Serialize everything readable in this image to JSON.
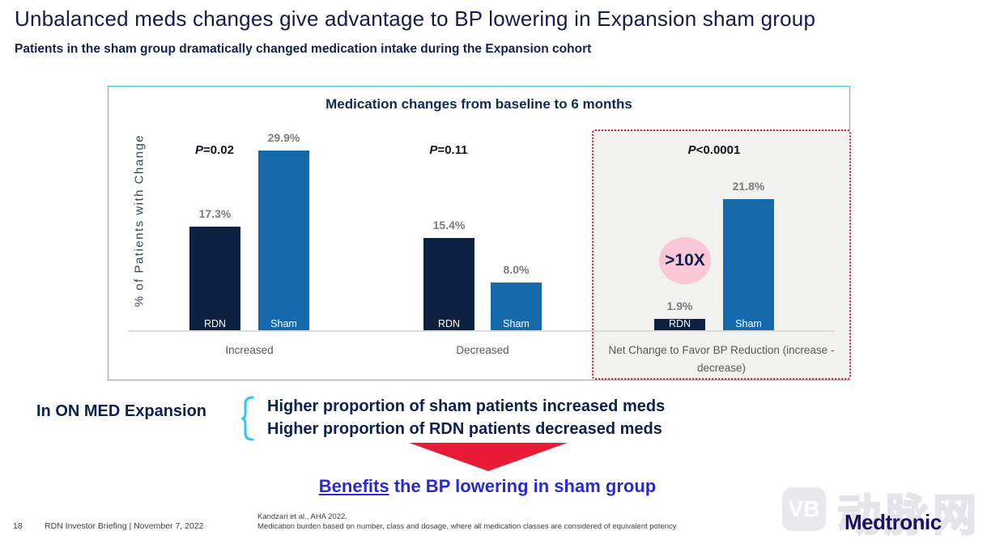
{
  "slide": {
    "title": "Unbalanced meds changes give advantage to BP lowering in Expansion sham group",
    "subtitle": "Patients in the sham group dramatically changed medication intake during the Expansion cohort"
  },
  "chart_data": {
    "type": "bar",
    "title": "Medication changes from baseline to 6 months",
    "ylabel": "% of Patients with Change",
    "ylim": [
      0,
      33
    ],
    "grid": false,
    "legend_position": "none",
    "series": [
      "RDN",
      "Sham"
    ],
    "groups": [
      {
        "category": "Increased",
        "p_value": "P=0.02",
        "values": {
          "RDN": 17.3,
          "Sham": 29.9
        },
        "labels": {
          "RDN": "17.3%",
          "Sham": "29.9%"
        },
        "highlighted": false
      },
      {
        "category": "Decreased",
        "p_value": "P=0.11",
        "values": {
          "RDN": 15.4,
          "Sham": 8.0
        },
        "labels": {
          "RDN": "15.4%",
          "Sham": "8.0%"
        },
        "highlighted": false
      },
      {
        "category": "Net Change to Favor BP Reduction (increase - decrease)",
        "p_value": "P<0.0001",
        "values": {
          "RDN": 1.9,
          "Sham": 21.8
        },
        "labels": {
          "RDN": "1.9%",
          "Sham": "21.8%"
        },
        "highlighted": true,
        "badge": ">10X"
      }
    ],
    "colors": {
      "RDN": "#0d2240",
      "Sham": "#166aab",
      "badge_bg": "#f9c7d5",
      "highlight_border": "#e9182f"
    }
  },
  "annotation": {
    "lead_in": "In ON MED Expansion",
    "points": [
      "Higher proportion of sham patients increased meds",
      "Higher proportion of RDN patients decreased meds"
    ],
    "conclusion": {
      "emphasis": "Benefits",
      "rest": " the BP lowering in sham group"
    }
  },
  "footer": {
    "page_number": "18",
    "left_text": "RDN Investor Briefing | November 7, 2022",
    "footnote_line1": "Kandzari et al., AHA 2022.",
    "footnote_line2": "Medication burden based on number, class and dosage, where all medication classes are considered of equivalent potency",
    "logo_text": "Medtronic",
    "watermark_badge": "VB",
    "watermark_text": "动脉网"
  }
}
